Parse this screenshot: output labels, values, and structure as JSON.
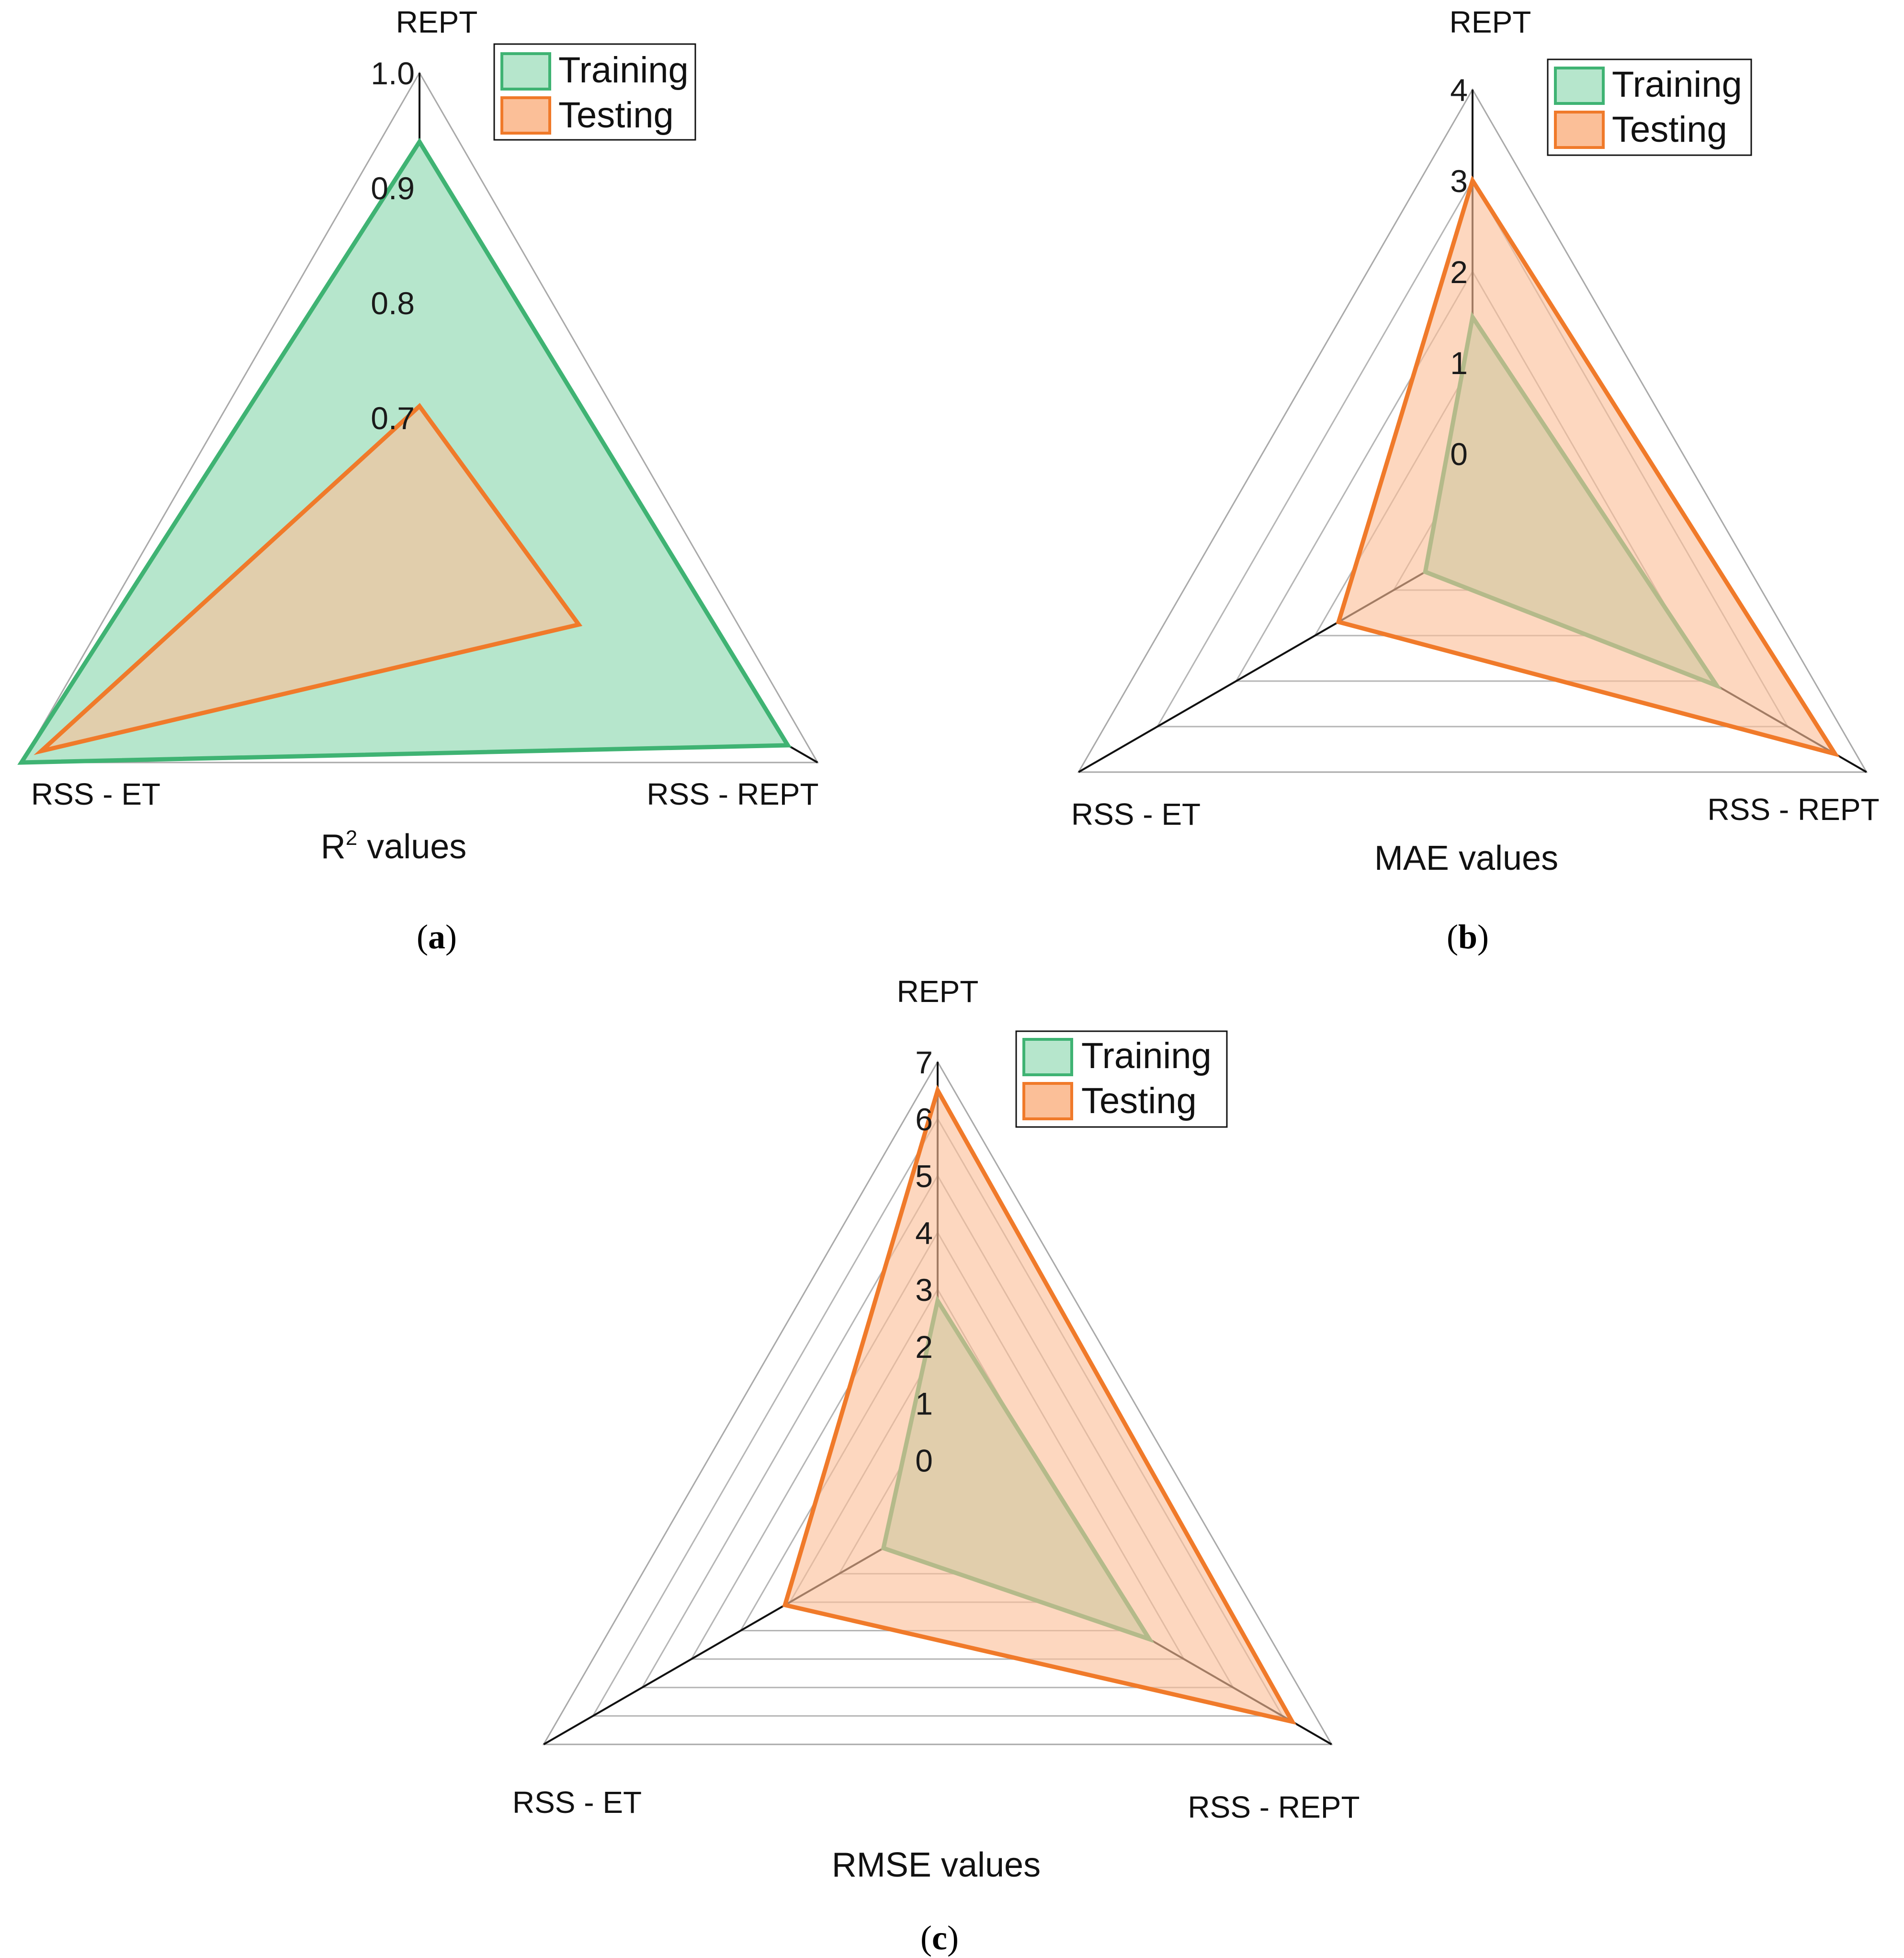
{
  "colors": {
    "training_fill": "#b6e6cc",
    "training_stroke": "#3fb373",
    "testing_fill": "#fbbf98",
    "testing_stroke": "#f07a2a"
  },
  "chart_data": [
    {
      "type": "radar",
      "panel": "a",
      "title_base": "R",
      "title_sup": "2",
      "title_rest": " values",
      "axes": [
        "REPT",
        "RSS - REPT",
        "RSS - ET"
      ],
      "rlim": [
        0.6,
        1.0
      ],
      "rticks": [
        0.7,
        0.8,
        0.9,
        1.0
      ],
      "rtick_labels": [
        "0.7",
        "0.8",
        "0.9",
        "1.0"
      ],
      "legend": {
        "placement": "top-right",
        "entries": [
          "Training",
          "Testing"
        ]
      },
      "series": [
        {
          "name": "Training",
          "values": [
            0.94,
            0.97,
            1.0
          ]
        },
        {
          "name": "Testing",
          "values": [
            0.71,
            0.76,
            0.98
          ]
        }
      ]
    },
    {
      "type": "radar",
      "panel": "b",
      "title": "MAE values",
      "axes": [
        "REPT",
        "RSS - REPT",
        "RSS - ET"
      ],
      "rlim": [
        -1,
        4
      ],
      "rticks": [
        0,
        1,
        2,
        3,
        4
      ],
      "rtick_labels": [
        "0",
        "1",
        "2",
        "3",
        "4"
      ],
      "legend": {
        "placement": "top-right",
        "entries": [
          "Training",
          "Testing"
        ]
      },
      "series": [
        {
          "name": "Training",
          "values": [
            1.5,
            2.1,
            -0.4
          ]
        },
        {
          "name": "Testing",
          "values": [
            3.0,
            3.6,
            0.7
          ]
        }
      ]
    },
    {
      "type": "radar",
      "panel": "c",
      "title": "RMSE values",
      "axes": [
        "REPT",
        "RSS - REPT",
        "RSS - ET"
      ],
      "rlim": [
        -1,
        7
      ],
      "rticks": [
        0,
        1,
        2,
        3,
        4,
        5,
        6,
        7
      ],
      "rtick_labels": [
        "0",
        "1",
        "2",
        "3",
        "4",
        "5",
        "6",
        "7"
      ],
      "legend": {
        "placement": "top-right",
        "entries": [
          "Training",
          "Testing"
        ]
      },
      "series": [
        {
          "name": "Training",
          "values": [
            2.8,
            3.3,
            0.1
          ]
        },
        {
          "name": "Testing",
          "values": [
            6.5,
            6.2,
            2.1
          ]
        }
      ]
    }
  ]
}
